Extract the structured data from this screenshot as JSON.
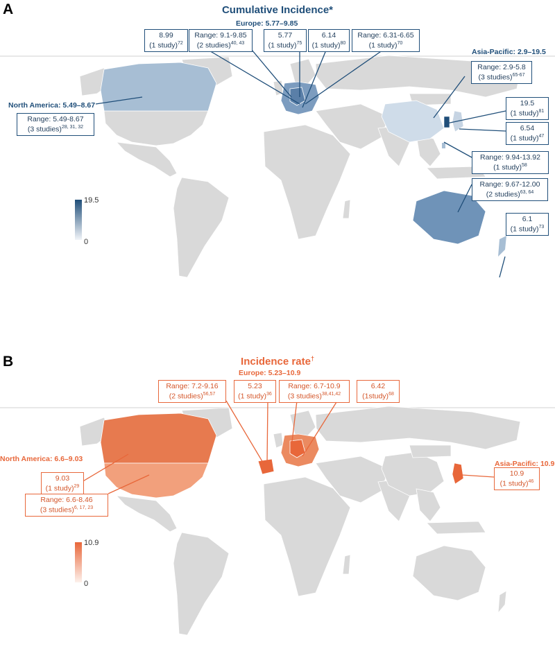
{
  "panel_a": {
    "letter": "A",
    "title": "Cumulative Incidence*",
    "region_europe": "Europe: 5.77–9.85",
    "region_asia": "Asia-Pacific: 2.9–19.5",
    "region_na": "North America: 5.49–8.67",
    "legend_max": "19.5",
    "legend_min": "0",
    "labels": [
      {
        "l1": "8.99",
        "l2": "(1 study)",
        "ref": "72"
      },
      {
        "l1": "Range: 9.1-9.85",
        "l2": "(2 studies)",
        "ref": "40, 43"
      },
      {
        "l1": "5.77",
        "l2": "(1 study)",
        "ref": "75"
      },
      {
        "l1": "6.14",
        "l2": "(1 study)",
        "ref": "80"
      },
      {
        "l1": "Range: 6.31-6.65",
        "l2": "(1 study)",
        "ref": "70"
      },
      {
        "l1": "Range: 2.9-5.8",
        "l2": "(3 studies)",
        "ref": "65-67"
      },
      {
        "l1": "19.5",
        "l2": "(1 study)",
        "ref": "81"
      },
      {
        "l1": "6.54",
        "l2": "(1 study)",
        "ref": "47"
      },
      {
        "l1": "Range: 9.94-13.92",
        "l2": "(1 study)",
        "ref": "58"
      },
      {
        "l1": "Range: 9.67-12.00",
        "l2": "(2 studies)",
        "ref": "63, 64"
      },
      {
        "l1": "6.1",
        "l2": "(1 study)",
        "ref": "73"
      },
      {
        "l1": "Range: 5.49-8.67",
        "l2": "(3 studies)",
        "ref": "28, 31, 32"
      }
    ],
    "colors": {
      "accent": "#1f4e79",
      "land": "#d9d9d9"
    }
  },
  "panel_b": {
    "letter": "B",
    "title": "Incidence rate",
    "title_mark": "†",
    "region_europe": "Europe: 5.23–10.9",
    "region_asia": "Asia-Pacific: 10.9",
    "region_na": "North America: 6.6–9.03",
    "legend_max": "10.9",
    "legend_min": "0",
    "labels": [
      {
        "l1": "Range: 7.2-9.16",
        "l2": "(2 studies)",
        "ref": "56,57"
      },
      {
        "l1": "5.23",
        "l2": "(1 study)",
        "ref": "36"
      },
      {
        "l1": "Range: 6.7-10.9",
        "l2": "(3 studies)",
        "ref": "38,41,42"
      },
      {
        "l1": "6.42",
        "l2": "(1study)",
        "ref": "68"
      },
      {
        "l1": "10.9",
        "l2": "(1 study)",
        "ref": "46"
      },
      {
        "l1": "9.03",
        "l2": "(1 study)",
        "ref": "29"
      },
      {
        "l1": "Range: 6.6-8.46",
        "l2": "(3 studies)",
        "ref": "6, 17, 23"
      }
    ],
    "colors": {
      "accent": "#e8673a",
      "land": "#d9d9d9"
    }
  }
}
